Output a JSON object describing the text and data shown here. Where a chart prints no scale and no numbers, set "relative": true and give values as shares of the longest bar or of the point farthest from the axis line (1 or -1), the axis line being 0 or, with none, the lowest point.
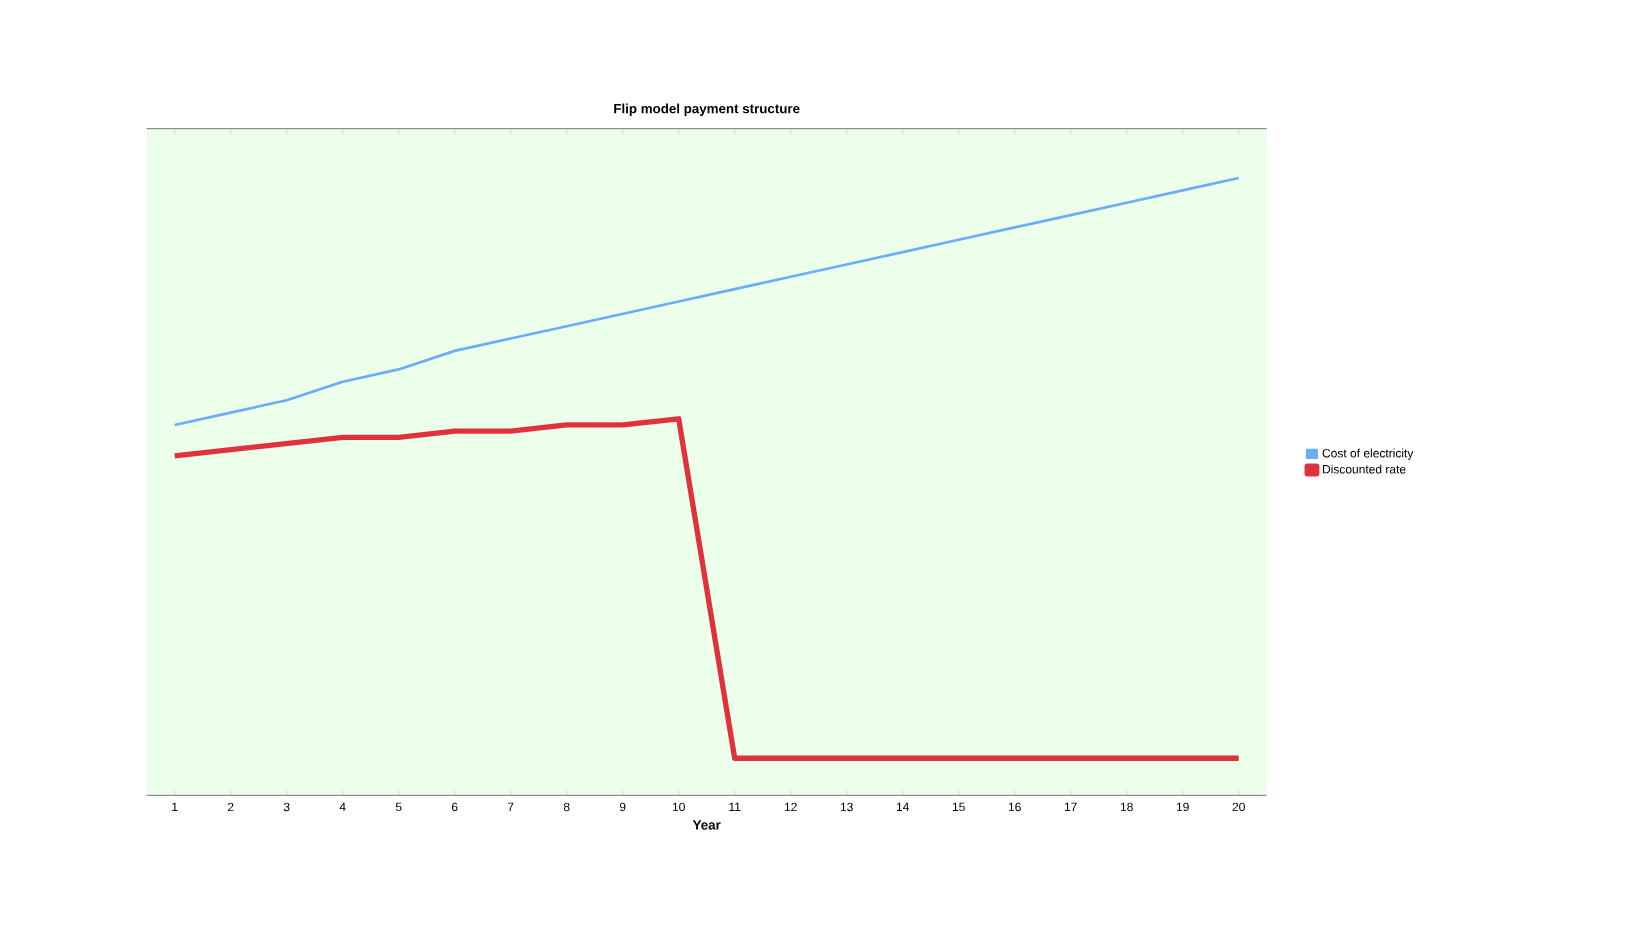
{
  "chart_data": {
    "type": "line",
    "title": "Flip model payment structure",
    "xlabel": "Year",
    "relative": true,
    "legend": "right",
    "grid": false,
    "marker": "none",
    "categories": [
      "1",
      "2",
      "3",
      "4",
      "5",
      "6",
      "7",
      "8",
      "9",
      "10",
      "11",
      "12",
      "13",
      "14",
      "15",
      "16",
      "17",
      "18",
      "19",
      "20"
    ],
    "series": [
      {
        "name": "Cost of electricity",
        "color": "#6aaef6",
        "values": [
          0.6,
          0.62,
          0.64,
          0.67,
          0.69,
          0.72,
          0.74,
          0.76,
          0.78,
          0.8,
          0.82,
          0.84,
          0.86,
          0.88,
          0.9,
          0.92,
          0.94,
          0.96,
          0.98,
          1.0
        ]
      },
      {
        "name": "Discounted rate",
        "color": "#e0323c",
        "values": [
          0.55,
          0.56,
          0.57,
          0.58,
          0.58,
          0.59,
          0.59,
          0.6,
          0.6,
          0.61,
          0.06,
          0.06,
          0.06,
          0.06,
          0.06,
          0.06,
          0.06,
          0.06,
          0.06,
          0.06
        ]
      }
    ]
  }
}
